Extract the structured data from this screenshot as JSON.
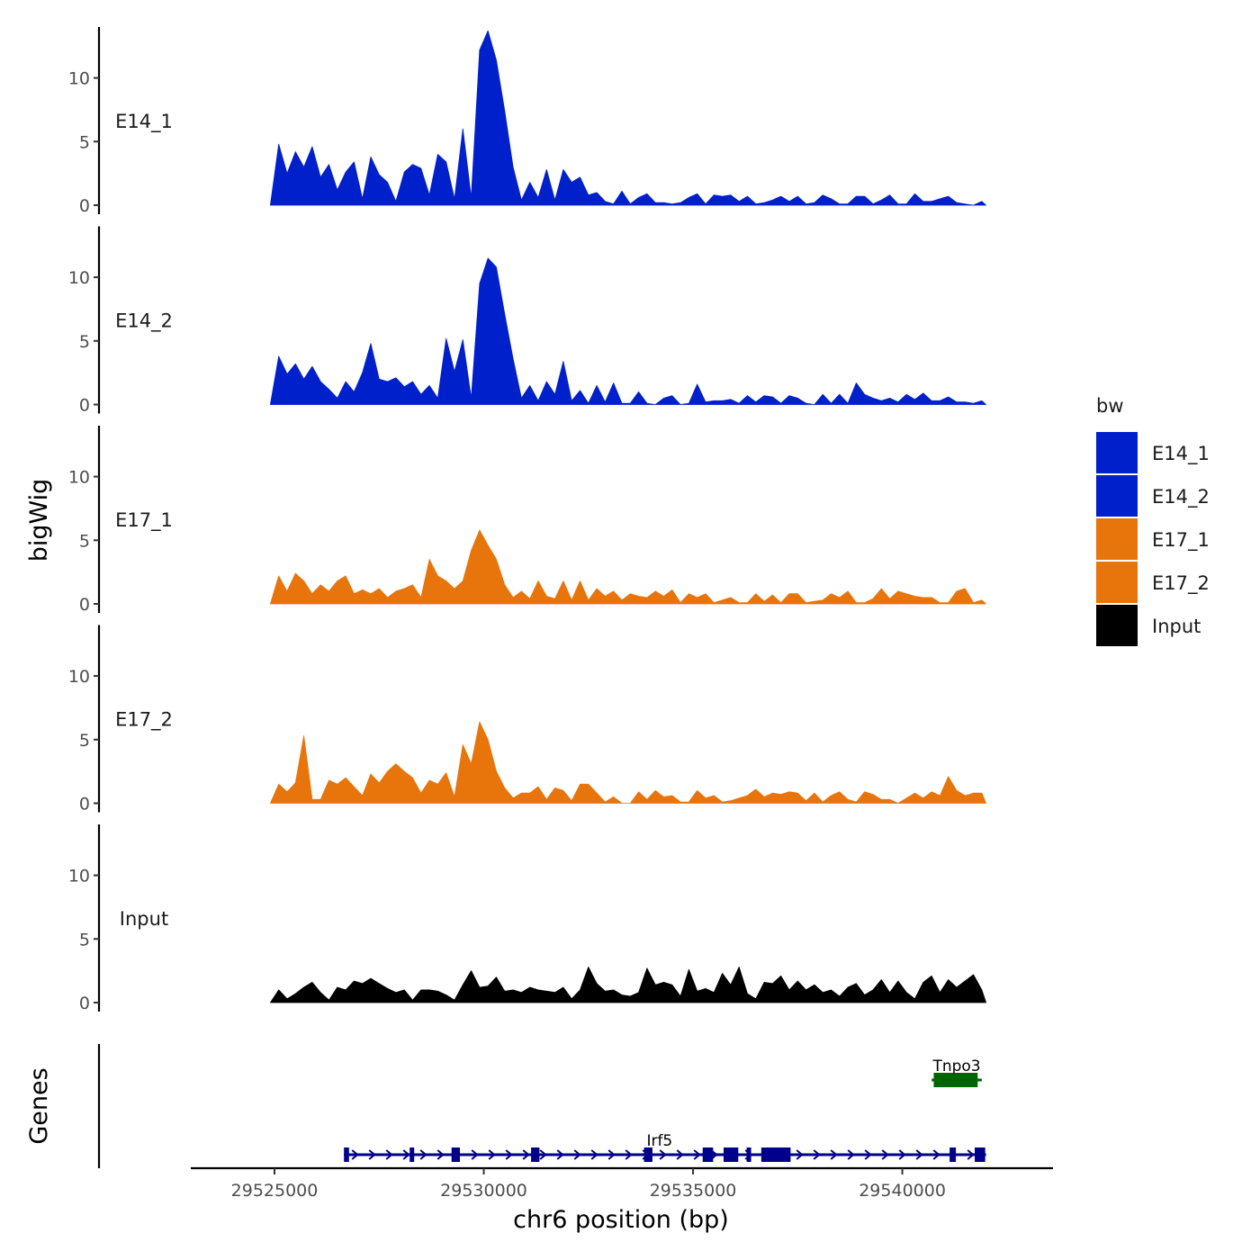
{
  "chart_data": {
    "type": "area",
    "chromosome_axis_title": "chr6 position (bp)",
    "signal_axis_title": "bigWig",
    "genes_axis_title": "Genes",
    "xlim": [
      29523000,
      29543600
    ],
    "x_ticks": [
      29525000,
      29530000,
      29535000,
      29540000
    ],
    "x_tick_labels": [
      "29525000",
      "29530000",
      "29535000",
      "29540000"
    ],
    "ylim": [
      0,
      14
    ],
    "y_ticks": [
      0,
      5,
      10
    ],
    "y_tick_labels": [
      "0",
      "5",
      "10"
    ],
    "legend": {
      "title": "bw",
      "position": "right",
      "items": [
        {
          "label": "E14_1",
          "color": "#0020CC"
        },
        {
          "label": "E14_2",
          "color": "#0020CC"
        },
        {
          "label": "E17_1",
          "color": "#E8740C"
        },
        {
          "label": "E17_2",
          "color": "#E8740C"
        },
        {
          "label": "Input",
          "color": "#000000"
        }
      ]
    },
    "series": [
      {
        "name": "E14_1",
        "color": "#0020CC",
        "x": [
          29524900,
          29525100,
          29525300,
          29525500,
          29525700,
          29525900,
          29526100,
          29526300,
          29526500,
          29526700,
          29526900,
          29527100,
          29527300,
          29527500,
          29527700,
          29527900,
          29528100,
          29528300,
          29528500,
          29528700,
          29528900,
          29529100,
          29529300,
          29529500,
          29529700,
          29529900,
          29530100,
          29530300,
          29530500,
          29530700,
          29530900,
          29531100,
          29531300,
          29531500,
          29531700,
          29531900,
          29532100,
          29532300,
          29532500,
          29532700,
          29532900,
          29533100,
          29533300,
          29533500,
          29533700,
          29533900,
          29534100,
          29534300,
          29534500,
          29534700,
          29534900,
          29535100,
          29535300,
          29535500,
          29535700,
          29535900,
          29536100,
          29536300,
          29536500,
          29536700,
          29536900,
          29537100,
          29537300,
          29537500,
          29537700,
          29537900,
          29538100,
          29538300,
          29538500,
          29538700,
          29538900,
          29539100,
          29539300,
          29539500,
          29539700,
          29539900,
          29540100,
          29540300,
          29540500,
          29540700,
          29540900,
          29541100,
          29541300,
          29541500,
          29541700,
          29541900,
          29542000
        ],
        "values": [
          0,
          4.8,
          2.5,
          4.2,
          3.0,
          4.6,
          2.2,
          3.2,
          1.2,
          2.6,
          3.4,
          0.5,
          3.8,
          2.4,
          1.8,
          0.3,
          2.6,
          3.2,
          2.9,
          0.8,
          4.0,
          3.4,
          0.5,
          6.0,
          0.6,
          12.2,
          13.7,
          11.4,
          7.4,
          3.0,
          0.4,
          1.8,
          0.6,
          2.8,
          0.4,
          2.8,
          1.8,
          2.2,
          0.8,
          1.0,
          0.3,
          0.1,
          1.1,
          0.1,
          0.6,
          0.9,
          0.2,
          0.2,
          0.1,
          0.2,
          0.6,
          0.9,
          0.1,
          0.8,
          0.7,
          0.8,
          0.3,
          0.7,
          0.1,
          0.2,
          0.4,
          0.7,
          0.3,
          0.7,
          0.1,
          0.2,
          0.8,
          0.5,
          0.1,
          0.1,
          0.7,
          0.7,
          0.1,
          0.4,
          0.8,
          0.1,
          0.1,
          0.9,
          0.3,
          0.3,
          0.5,
          0.7,
          0.2,
          0.1,
          0,
          0.3,
          0
        ]
      },
      {
        "name": "E14_2",
        "color": "#0020CC",
        "x": [
          29524900,
          29525100,
          29525300,
          29525500,
          29525700,
          29525900,
          29526100,
          29526300,
          29526500,
          29526700,
          29526900,
          29527100,
          29527300,
          29527500,
          29527700,
          29527900,
          29528100,
          29528300,
          29528500,
          29528700,
          29528900,
          29529100,
          29529300,
          29529500,
          29529700,
          29529900,
          29530100,
          29530300,
          29530500,
          29530700,
          29530900,
          29531100,
          29531300,
          29531500,
          29531700,
          29531900,
          29532100,
          29532300,
          29532500,
          29532700,
          29532900,
          29533100,
          29533300,
          29533500,
          29533700,
          29533900,
          29534100,
          29534300,
          29534500,
          29534700,
          29534900,
          29535100,
          29535300,
          29535500,
          29535700,
          29535900,
          29536100,
          29536300,
          29536500,
          29536700,
          29536900,
          29537100,
          29537300,
          29537500,
          29537700,
          29537900,
          29538100,
          29538300,
          29538500,
          29538700,
          29538900,
          29539100,
          29539300,
          29539500,
          29539700,
          29539900,
          29540100,
          29540300,
          29540500,
          29540700,
          29540900,
          29541100,
          29541300,
          29541500,
          29541700,
          29541900,
          29542000
        ],
        "values": [
          0,
          3.8,
          2.4,
          3.2,
          2.0,
          3.0,
          1.8,
          1.2,
          0.5,
          1.8,
          1.0,
          2.5,
          4.8,
          2.0,
          1.8,
          2.1,
          1.4,
          1.8,
          0.8,
          1.5,
          0.5,
          5.2,
          2.6,
          5.1,
          0.5,
          9.5,
          11.5,
          10.8,
          7.1,
          3.6,
          0.5,
          1.5,
          0.3,
          1.8,
          0.8,
          3.4,
          0.3,
          1.1,
          0.1,
          1.5,
          0.2,
          1.7,
          0.1,
          0.1,
          1.0,
          0.1,
          0,
          0.5,
          0.7,
          0,
          0.1,
          1.6,
          0.2,
          0.3,
          0.3,
          0.4,
          0.1,
          0.7,
          0.2,
          0.7,
          0.6,
          0.1,
          0.7,
          0.5,
          0.1,
          0,
          0.8,
          0.1,
          0.8,
          0.1,
          1.7,
          0.8,
          0.5,
          0.3,
          0.5,
          0.2,
          0.8,
          0.4,
          0.9,
          0.3,
          0.3,
          0.6,
          0.2,
          0.2,
          0.1,
          0.3,
          0
        ]
      },
      {
        "name": "E17_1",
        "color": "#E8740C",
        "x": [
          29524900,
          29525100,
          29525300,
          29525500,
          29525700,
          29525900,
          29526100,
          29526300,
          29526500,
          29526700,
          29526900,
          29527100,
          29527300,
          29527500,
          29527700,
          29527900,
          29528100,
          29528300,
          29528500,
          29528700,
          29528900,
          29529100,
          29529300,
          29529500,
          29529700,
          29529900,
          29530100,
          29530300,
          29530500,
          29530700,
          29530900,
          29531100,
          29531300,
          29531500,
          29531700,
          29531900,
          29532100,
          29532300,
          29532500,
          29532700,
          29532900,
          29533100,
          29533300,
          29533500,
          29533700,
          29533900,
          29534100,
          29534300,
          29534500,
          29534700,
          29534900,
          29535100,
          29535300,
          29535500,
          29535700,
          29535900,
          29536100,
          29536300,
          29536500,
          29536700,
          29536900,
          29537100,
          29537300,
          29537500,
          29537700,
          29537900,
          29538100,
          29538300,
          29538500,
          29538700,
          29538900,
          29539100,
          29539300,
          29539500,
          29539700,
          29539900,
          29540100,
          29540300,
          29540500,
          29540700,
          29540900,
          29541100,
          29541300,
          29541500,
          29541700,
          29541900,
          29542000
        ],
        "values": [
          0,
          2.2,
          1.0,
          2.4,
          1.8,
          0.8,
          1.5,
          1.0,
          1.8,
          2.2,
          0.8,
          1.1,
          0.8,
          1.2,
          0.5,
          1.0,
          1.2,
          1.5,
          0.5,
          3.5,
          2.2,
          1.8,
          1.2,
          1.8,
          4.2,
          5.8,
          4.6,
          3.5,
          1.5,
          0.5,
          1.0,
          0.4,
          1.8,
          0.6,
          0.4,
          1.8,
          0.3,
          1.8,
          0.3,
          1.2,
          0.6,
          1.0,
          0.3,
          0.8,
          0.6,
          0.5,
          1.0,
          0.6,
          1.1,
          0.1,
          0.8,
          0.5,
          0.8,
          0.1,
          0.3,
          0.5,
          0.1,
          0.1,
          0.8,
          0.2,
          0.7,
          0.1,
          0.8,
          0.8,
          0.1,
          0.2,
          0.3,
          0.8,
          0.5,
          1.0,
          0.1,
          0.1,
          0.4,
          1.2,
          0.4,
          1.0,
          0.8,
          0.6,
          0.5,
          0.5,
          0.1,
          0.1,
          1.0,
          1.2,
          0.1,
          0.3,
          0
        ]
      },
      {
        "name": "E17_2",
        "color": "#E8740C",
        "x": [
          29524900,
          29525100,
          29525300,
          29525500,
          29525700,
          29525900,
          29526100,
          29526300,
          29526500,
          29526700,
          29526900,
          29527100,
          29527300,
          29527500,
          29527700,
          29527900,
          29528100,
          29528300,
          29528500,
          29528700,
          29528900,
          29529100,
          29529300,
          29529500,
          29529700,
          29529900,
          29530100,
          29530300,
          29530500,
          29530700,
          29530900,
          29531100,
          29531300,
          29531500,
          29531700,
          29531900,
          29532100,
          29532300,
          29532500,
          29532700,
          29532900,
          29533100,
          29533300,
          29533500,
          29533700,
          29533900,
          29534100,
          29534300,
          29534500,
          29534700,
          29534900,
          29535100,
          29535300,
          29535500,
          29535700,
          29535900,
          29536100,
          29536300,
          29536500,
          29536700,
          29536900,
          29537100,
          29537300,
          29537500,
          29537700,
          29537900,
          29538100,
          29538300,
          29538500,
          29538700,
          29538900,
          29539100,
          29539300,
          29539500,
          29539700,
          29539900,
          29540100,
          29540300,
          29540500,
          29540700,
          29540900,
          29541100,
          29541300,
          29541500,
          29541700,
          29541900,
          29542000
        ],
        "values": [
          0,
          1.5,
          0.9,
          1.6,
          5.3,
          0.3,
          0.3,
          1.8,
          1.5,
          2.0,
          1.3,
          0.6,
          2.3,
          1.6,
          2.5,
          3.1,
          2.5,
          2.0,
          0.8,
          1.8,
          1.5,
          2.4,
          0.5,
          4.6,
          3.1,
          6.4,
          5.0,
          2.5,
          1.2,
          0.4,
          0.8,
          0.8,
          1.3,
          0.3,
          1.2,
          1.0,
          0.2,
          1.5,
          1.5,
          0.8,
          0.1,
          0.5,
          0,
          0,
          0.9,
          0.3,
          1.0,
          0.5,
          0.6,
          0.1,
          0.1,
          1.0,
          0.4,
          0.6,
          0.1,
          0.2,
          0.4,
          0.6,
          1.1,
          0.5,
          0.8,
          0.7,
          0.9,
          0.8,
          0.2,
          0.8,
          0.1,
          0.6,
          0.9,
          0.3,
          0.1,
          0.9,
          0.7,
          0.3,
          0.3,
          0,
          0.4,
          0.8,
          0.4,
          0.9,
          0.6,
          2.1,
          1.0,
          0.6,
          0.8,
          0.8,
          0
        ]
      },
      {
        "name": "Input",
        "color": "#000000",
        "x": [
          29524900,
          29525100,
          29525300,
          29525500,
          29525700,
          29525900,
          29526100,
          29526300,
          29526500,
          29526700,
          29526900,
          29527100,
          29527300,
          29527500,
          29527700,
          29527900,
          29528100,
          29528300,
          29528500,
          29528700,
          29528900,
          29529100,
          29529300,
          29529500,
          29529700,
          29529900,
          29530100,
          29530300,
          29530500,
          29530700,
          29530900,
          29531100,
          29531300,
          29531500,
          29531700,
          29531900,
          29532100,
          29532300,
          29532500,
          29532700,
          29532900,
          29533100,
          29533300,
          29533500,
          29533700,
          29533900,
          29534100,
          29534300,
          29534500,
          29534700,
          29534900,
          29535100,
          29535300,
          29535500,
          29535700,
          29535900,
          29536100,
          29536300,
          29536500,
          29536700,
          29536900,
          29537100,
          29537300,
          29537500,
          29537700,
          29537900,
          29538100,
          29538300,
          29538500,
          29538700,
          29538900,
          29539100,
          29539300,
          29539500,
          29539700,
          29539900,
          29540100,
          29540300,
          29540500,
          29540700,
          29540900,
          29541100,
          29541300,
          29541500,
          29541700,
          29541900,
          29542000
        ],
        "values": [
          0,
          1.0,
          0.3,
          0.7,
          1.2,
          1.6,
          0.8,
          0.2,
          1.2,
          1.0,
          1.7,
          1.5,
          1.9,
          1.5,
          1.1,
          0.8,
          1.0,
          0.2,
          1.0,
          1.0,
          0.9,
          0.6,
          0.2,
          1.4,
          2.5,
          1.2,
          1.3,
          2.0,
          0.9,
          1.0,
          0.8,
          1.2,
          1.0,
          0.9,
          0.8,
          1.2,
          0.3,
          1.0,
          2.8,
          1.5,
          0.9,
          1.0,
          0.6,
          0.5,
          0.8,
          2.7,
          1.4,
          1.6,
          1.4,
          0.5,
          2.6,
          0.9,
          1.1,
          0.8,
          2.3,
          1.4,
          2.8,
          0.7,
          0.3,
          1.6,
          1.5,
          2.1,
          1.0,
          1.7,
          1.0,
          1.4,
          0.8,
          1.0,
          0.5,
          1.2,
          1.5,
          0.6,
          1.0,
          1.8,
          0.8,
          1.7,
          0.8,
          0.3,
          1.6,
          2.1,
          0.8,
          1.8,
          1.2,
          1.7,
          2.2,
          1.0,
          0
        ]
      }
    ],
    "genes": [
      {
        "name": "Irf5",
        "strand": "+",
        "color": "#00008B",
        "row": "lower",
        "start": 29526660,
        "end": 29542000,
        "label_x": 29534200,
        "exons": [
          [
            29526660,
            29526780
          ],
          [
            29528230,
            29528330
          ],
          [
            29529230,
            29529430
          ],
          [
            29531130,
            29531330
          ],
          [
            29533830,
            29534030
          ],
          [
            29535230,
            29535480
          ],
          [
            29535730,
            29536080
          ],
          [
            29536280,
            29536380
          ],
          [
            29536630,
            29537330
          ],
          [
            29541130,
            29541280
          ],
          [
            29541730,
            29541980
          ]
        ]
      },
      {
        "name": "Tnpo3",
        "strand": "-",
        "color": "#006400",
        "row": "upper",
        "start": 29540700,
        "end": 29541900,
        "label_x": 29541300,
        "exons": [
          [
            29540750,
            29541800
          ]
        ]
      }
    ]
  }
}
